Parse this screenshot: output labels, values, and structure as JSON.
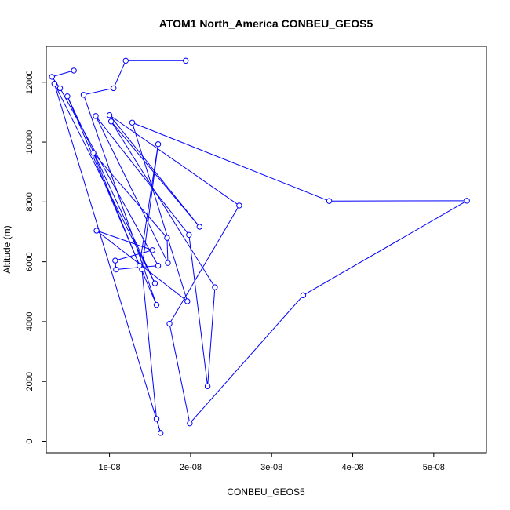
{
  "chart_data": {
    "type": "line",
    "title": "ATOM1 North_America CONBEU_GEOS5",
    "xlabel": "CONBEU_GEOS5",
    "ylabel": "Altitude (m)",
    "xlim": [
      2.2e-09,
      5.65e-08
    ],
    "ylim": [
      -380,
      13200
    ],
    "xticks": [
      1e-08,
      2e-08,
      3e-08,
      4e-08,
      5e-08
    ],
    "xtick_labels": [
      "1e-08",
      "2e-08",
      "3e-08",
      "4e-08",
      "5e-08"
    ],
    "yticks": [
      0,
      2000,
      4000,
      6000,
      8000,
      10000,
      12000
    ],
    "ytick_labels": [
      "0",
      "2000",
      "4000",
      "6000",
      "8000",
      "10000",
      "12000"
    ],
    "series": [
      {
        "color": "#0000ff",
        "marker": "open-circle",
        "points": [
          {
            "x": 1.94e-08,
            "y": 12720
          },
          {
            "x": 1.2e-08,
            "y": 12720
          },
          {
            "x": 1.05e-08,
            "y": 11800
          },
          {
            "x": 6.8e-09,
            "y": 11580
          },
          {
            "x": 1.58e-08,
            "y": 4560
          },
          {
            "x": 4.8e-09,
            "y": 11530
          },
          {
            "x": 1.56e-08,
            "y": 5280
          },
          {
            "x": 3.2e-09,
            "y": 11950
          },
          {
            "x": 1.63e-08,
            "y": 280
          },
          {
            "x": 1.58e-08,
            "y": 750
          },
          {
            "x": 1.4e-08,
            "y": 5750
          },
          {
            "x": 1.6e-08,
            "y": 9930
          },
          {
            "x": 1.37e-08,
            "y": 5870
          },
          {
            "x": 8e-09,
            "y": 9640
          },
          {
            "x": 1.71e-08,
            "y": 6800
          },
          {
            "x": 1.72e-08,
            "y": 5960
          },
          {
            "x": 8.3e-09,
            "y": 10870
          },
          {
            "x": 1.98e-08,
            "y": 6900
          },
          {
            "x": 2.21e-08,
            "y": 1840
          },
          {
            "x": 2.3e-08,
            "y": 5150
          },
          {
            "x": 1.02e-08,
            "y": 10690
          },
          {
            "x": 2.11e-08,
            "y": 7170
          },
          {
            "x": 1e-08,
            "y": 10900
          },
          {
            "x": 2.6e-08,
            "y": 7880
          },
          {
            "x": 1.74e-08,
            "y": 3930
          },
          {
            "x": 1.99e-08,
            "y": 600
          },
          {
            "x": 3.39e-08,
            "y": 4880
          },
          {
            "x": 5.41e-08,
            "y": 8040
          },
          {
            "x": 3.71e-08,
            "y": 8030
          },
          {
            "x": 1.28e-08,
            "y": 10650
          },
          {
            "x": 1.96e-08,
            "y": 4680
          },
          {
            "x": 8.4e-09,
            "y": 7040
          },
          {
            "x": 1.53e-08,
            "y": 6390
          },
          {
            "x": 1.07e-08,
            "y": 6040
          },
          {
            "x": 1.08e-08,
            "y": 5740
          },
          {
            "x": 1.6e-08,
            "y": 5870
          },
          {
            "x": 3.9e-09,
            "y": 11800
          },
          {
            "x": 2.9e-09,
            "y": 12180
          },
          {
            "x": 5.6e-09,
            "y": 12390
          }
        ]
      }
    ]
  }
}
